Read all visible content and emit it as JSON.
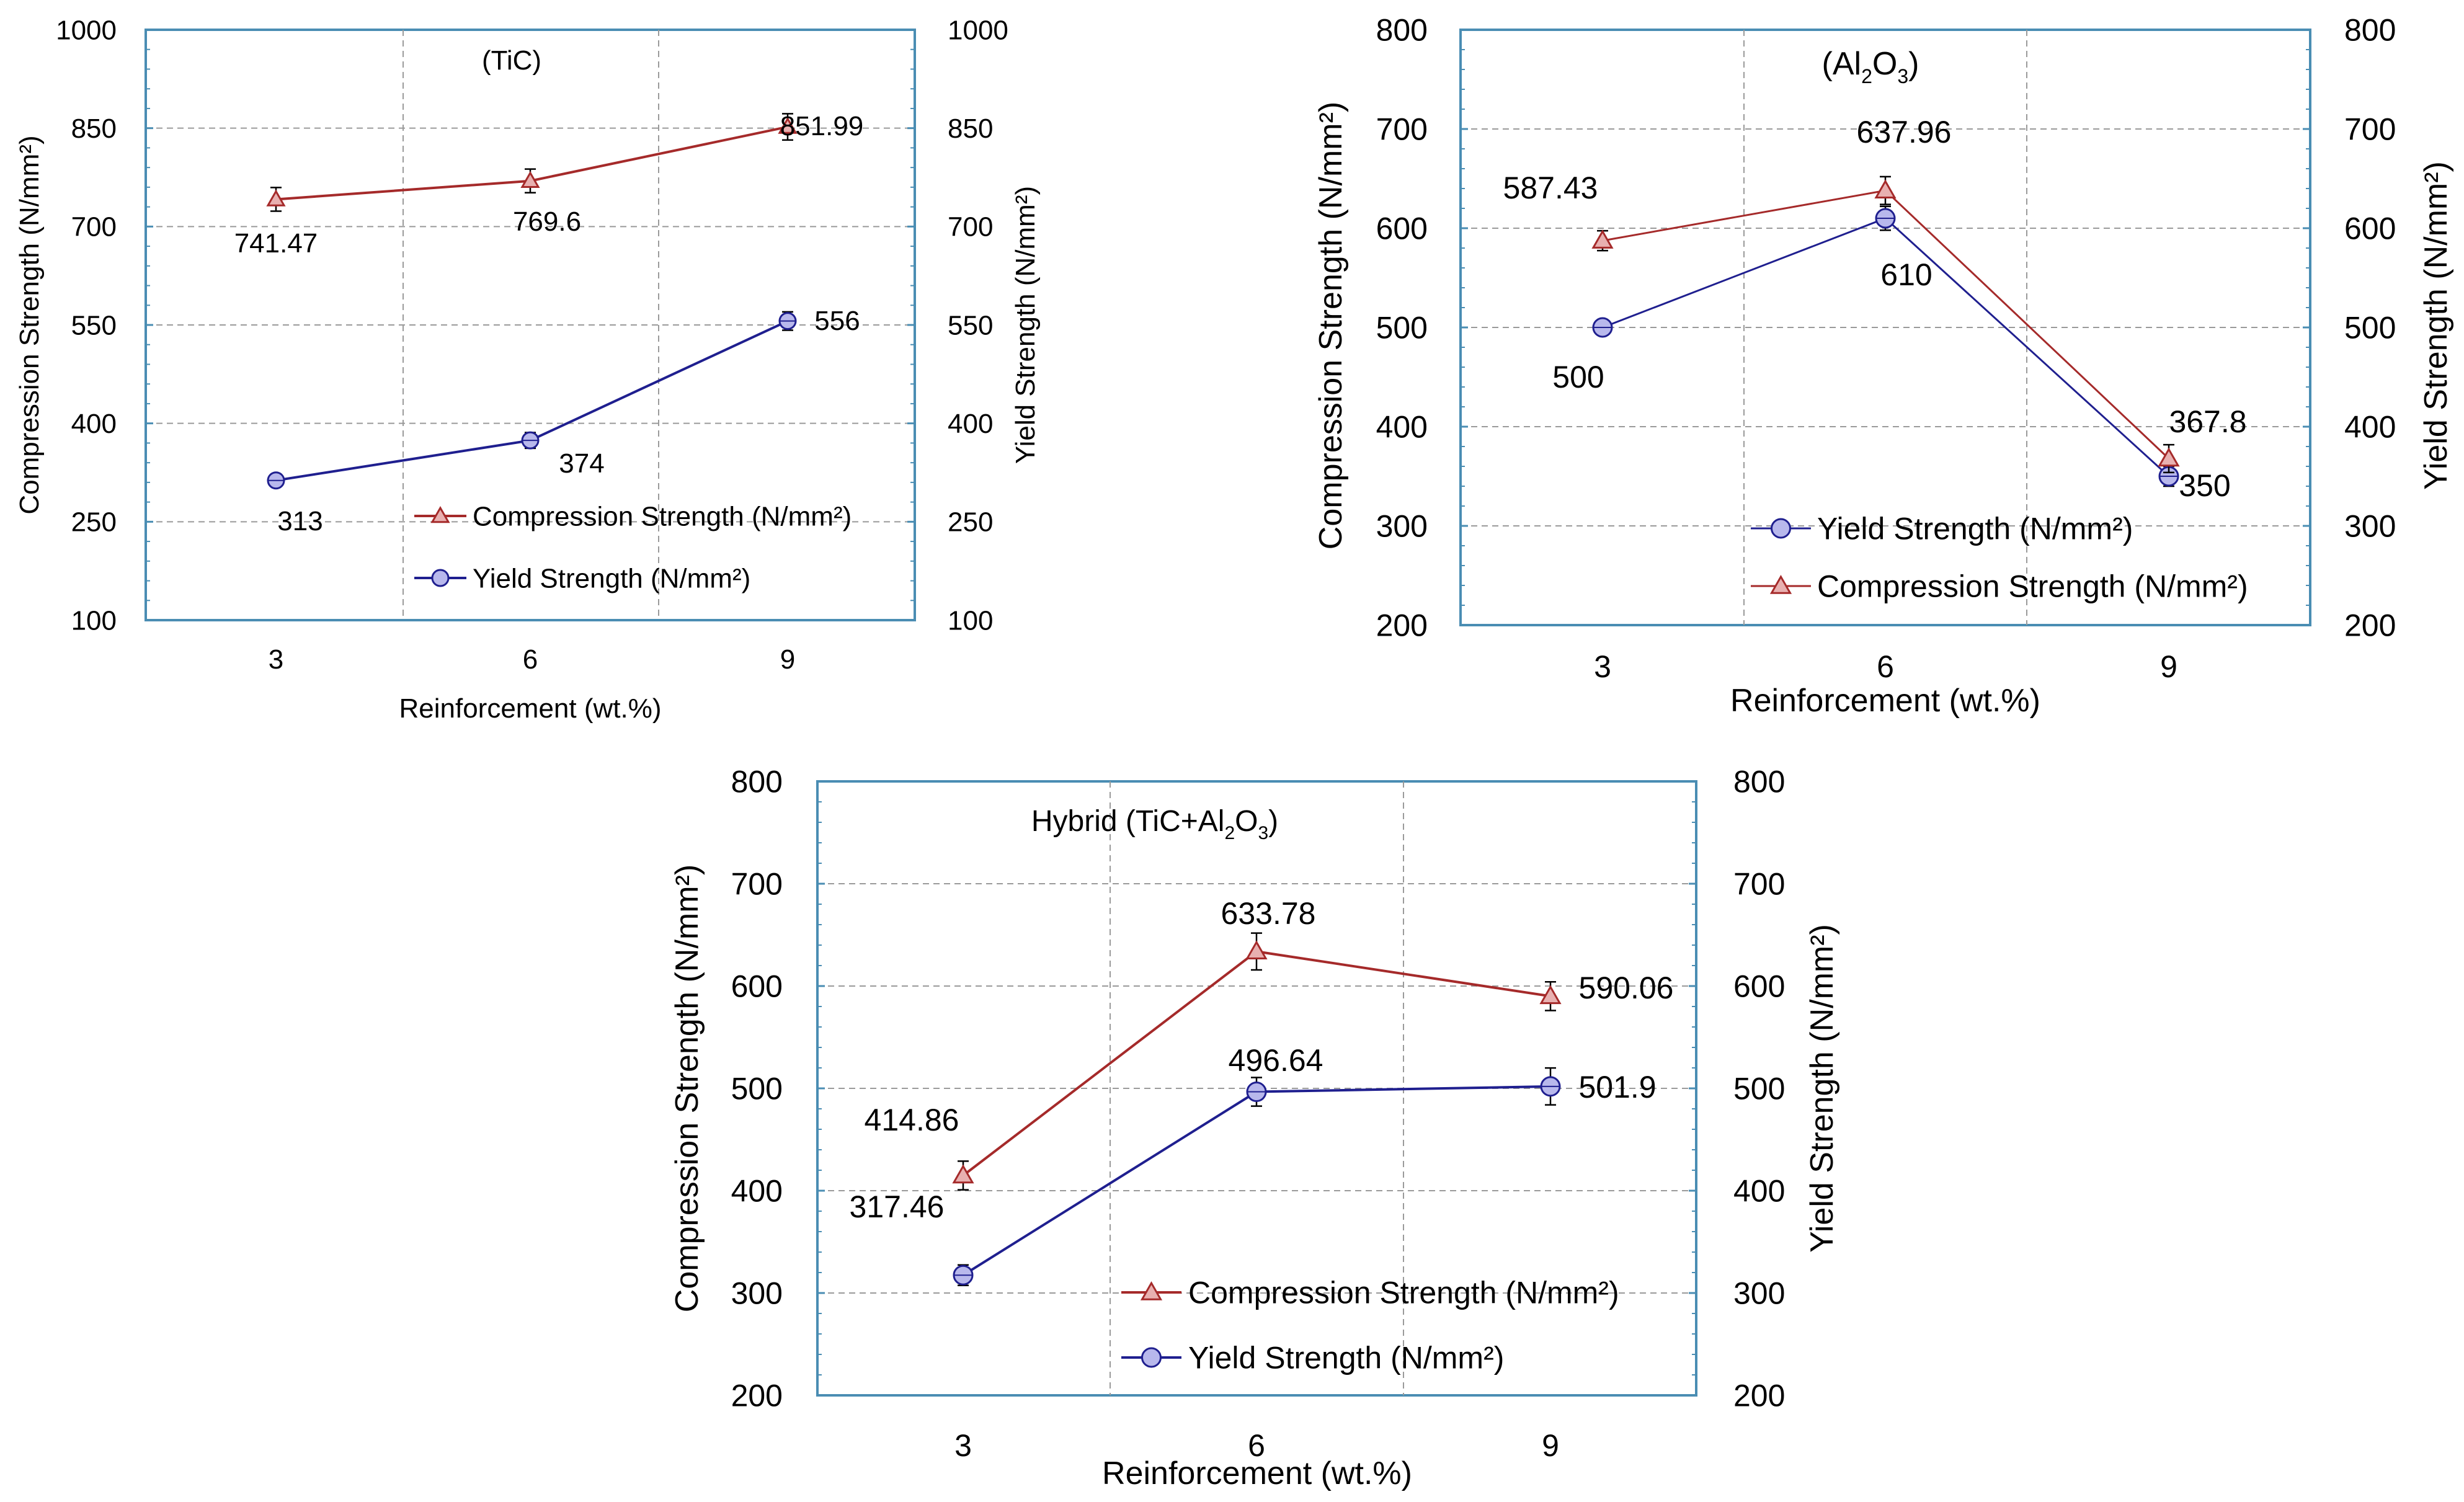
{
  "chart_data": [
    {
      "type": "line",
      "title": "(TiC)",
      "xlabel": "Reinforcement (wt.%)",
      "ylabel": "Compression Strength (N/mm²)",
      "y2label": "Yield Strength (N/mm²)",
      "categories": [
        "3",
        "6",
        "9"
      ],
      "ylim": [
        100,
        1000
      ],
      "yticks": [
        "100",
        "250",
        "400",
        "550",
        "700",
        "850",
        "1000"
      ],
      "y2ticks": [
        "100",
        "250",
        "400",
        "550",
        "700",
        "850",
        "1000"
      ],
      "grid": true,
      "legend_position": "bottom-right",
      "legend": [
        "Compression Strength (N/mm²)",
        "Yield Strength (N/mm²)"
      ],
      "series": [
        {
          "name": "Compression Strength (N/mm²)",
          "marker": "triangle",
          "color": "#A52A2A",
          "values": [
            741.47,
            769.6,
            851.99
          ],
          "labels": [
            "741.47",
            "769.6",
            "851.99"
          ],
          "error": [
            18,
            18,
            20
          ]
        },
        {
          "name": "Yield Strength (N/mm²)",
          "marker": "circle",
          "color": "#1F1F8F",
          "values": [
            313,
            374,
            556
          ],
          "labels": [
            "313",
            "374",
            "556"
          ],
          "error": [
            8,
            12,
            14
          ]
        }
      ]
    },
    {
      "type": "line",
      "title": "(Al2O3)",
      "xlabel": "Reinforcement (wt.%)",
      "ylabel": "Compression Strength (N/mm²)",
      "y2label": "Yield Strength (N/mm²)",
      "categories": [
        "3",
        "6",
        "9"
      ],
      "ylim": [
        200,
        800
      ],
      "yticks": [
        "200",
        "300",
        "400",
        "500",
        "600",
        "700",
        "800"
      ],
      "y2ticks": [
        "200",
        "300",
        "400",
        "500",
        "600",
        "700",
        "800"
      ],
      "grid": true,
      "legend_position": "bottom-right",
      "legend": [
        "Yield Strength (N/mm²)",
        "Compression Strength (N/mm²)"
      ],
      "series": [
        {
          "name": "Compression Strength (N/mm²)",
          "marker": "triangle",
          "color": "#A52A2A",
          "values": [
            587.43,
            637.96,
            367.8
          ],
          "labels": [
            "587.43",
            "637.96",
            "367.8"
          ],
          "error": [
            10,
            14,
            14
          ]
        },
        {
          "name": "Yield Strength (N/mm²)",
          "marker": "circle",
          "color": "#1F1F8F",
          "values": [
            500,
            610,
            350
          ],
          "labels": [
            "500",
            "610",
            "350"
          ],
          "error": [
            6,
            12,
            10
          ]
        }
      ]
    },
    {
      "type": "line",
      "title": "Hybrid (TiC+Al2O3)",
      "xlabel": "Reinforcement (wt.%)",
      "ylabel": "Compression Strength (N/mm²)",
      "y2label": "Yield Strength (N/mm²)",
      "categories": [
        "3",
        "6",
        "9"
      ],
      "ylim": [
        200,
        800
      ],
      "yticks": [
        "200",
        "300",
        "400",
        "500",
        "600",
        "700",
        "800"
      ],
      "y2ticks": [
        "200",
        "300",
        "400",
        "500",
        "600",
        "700",
        "800"
      ],
      "grid": true,
      "legend_position": "bottom-right",
      "legend": [
        "Compression Strength (N/mm²)",
        "Yield Strength (N/mm²)"
      ],
      "series": [
        {
          "name": "Compression Strength (N/mm²)",
          "marker": "triangle",
          "color": "#A52A2A",
          "values": [
            414.86,
            633.78,
            590.06
          ],
          "labels": [
            "414.86",
            "633.78",
            "590.06"
          ],
          "error": [
            14,
            18,
            14
          ]
        },
        {
          "name": "Yield Strength (N/mm²)",
          "marker": "circle",
          "color": "#1F1F8F",
          "values": [
            317.46,
            496.64,
            501.9
          ],
          "labels": [
            "317.46",
            "496.64",
            "501.9"
          ],
          "error": [
            10,
            14,
            18
          ]
        }
      ]
    }
  ]
}
